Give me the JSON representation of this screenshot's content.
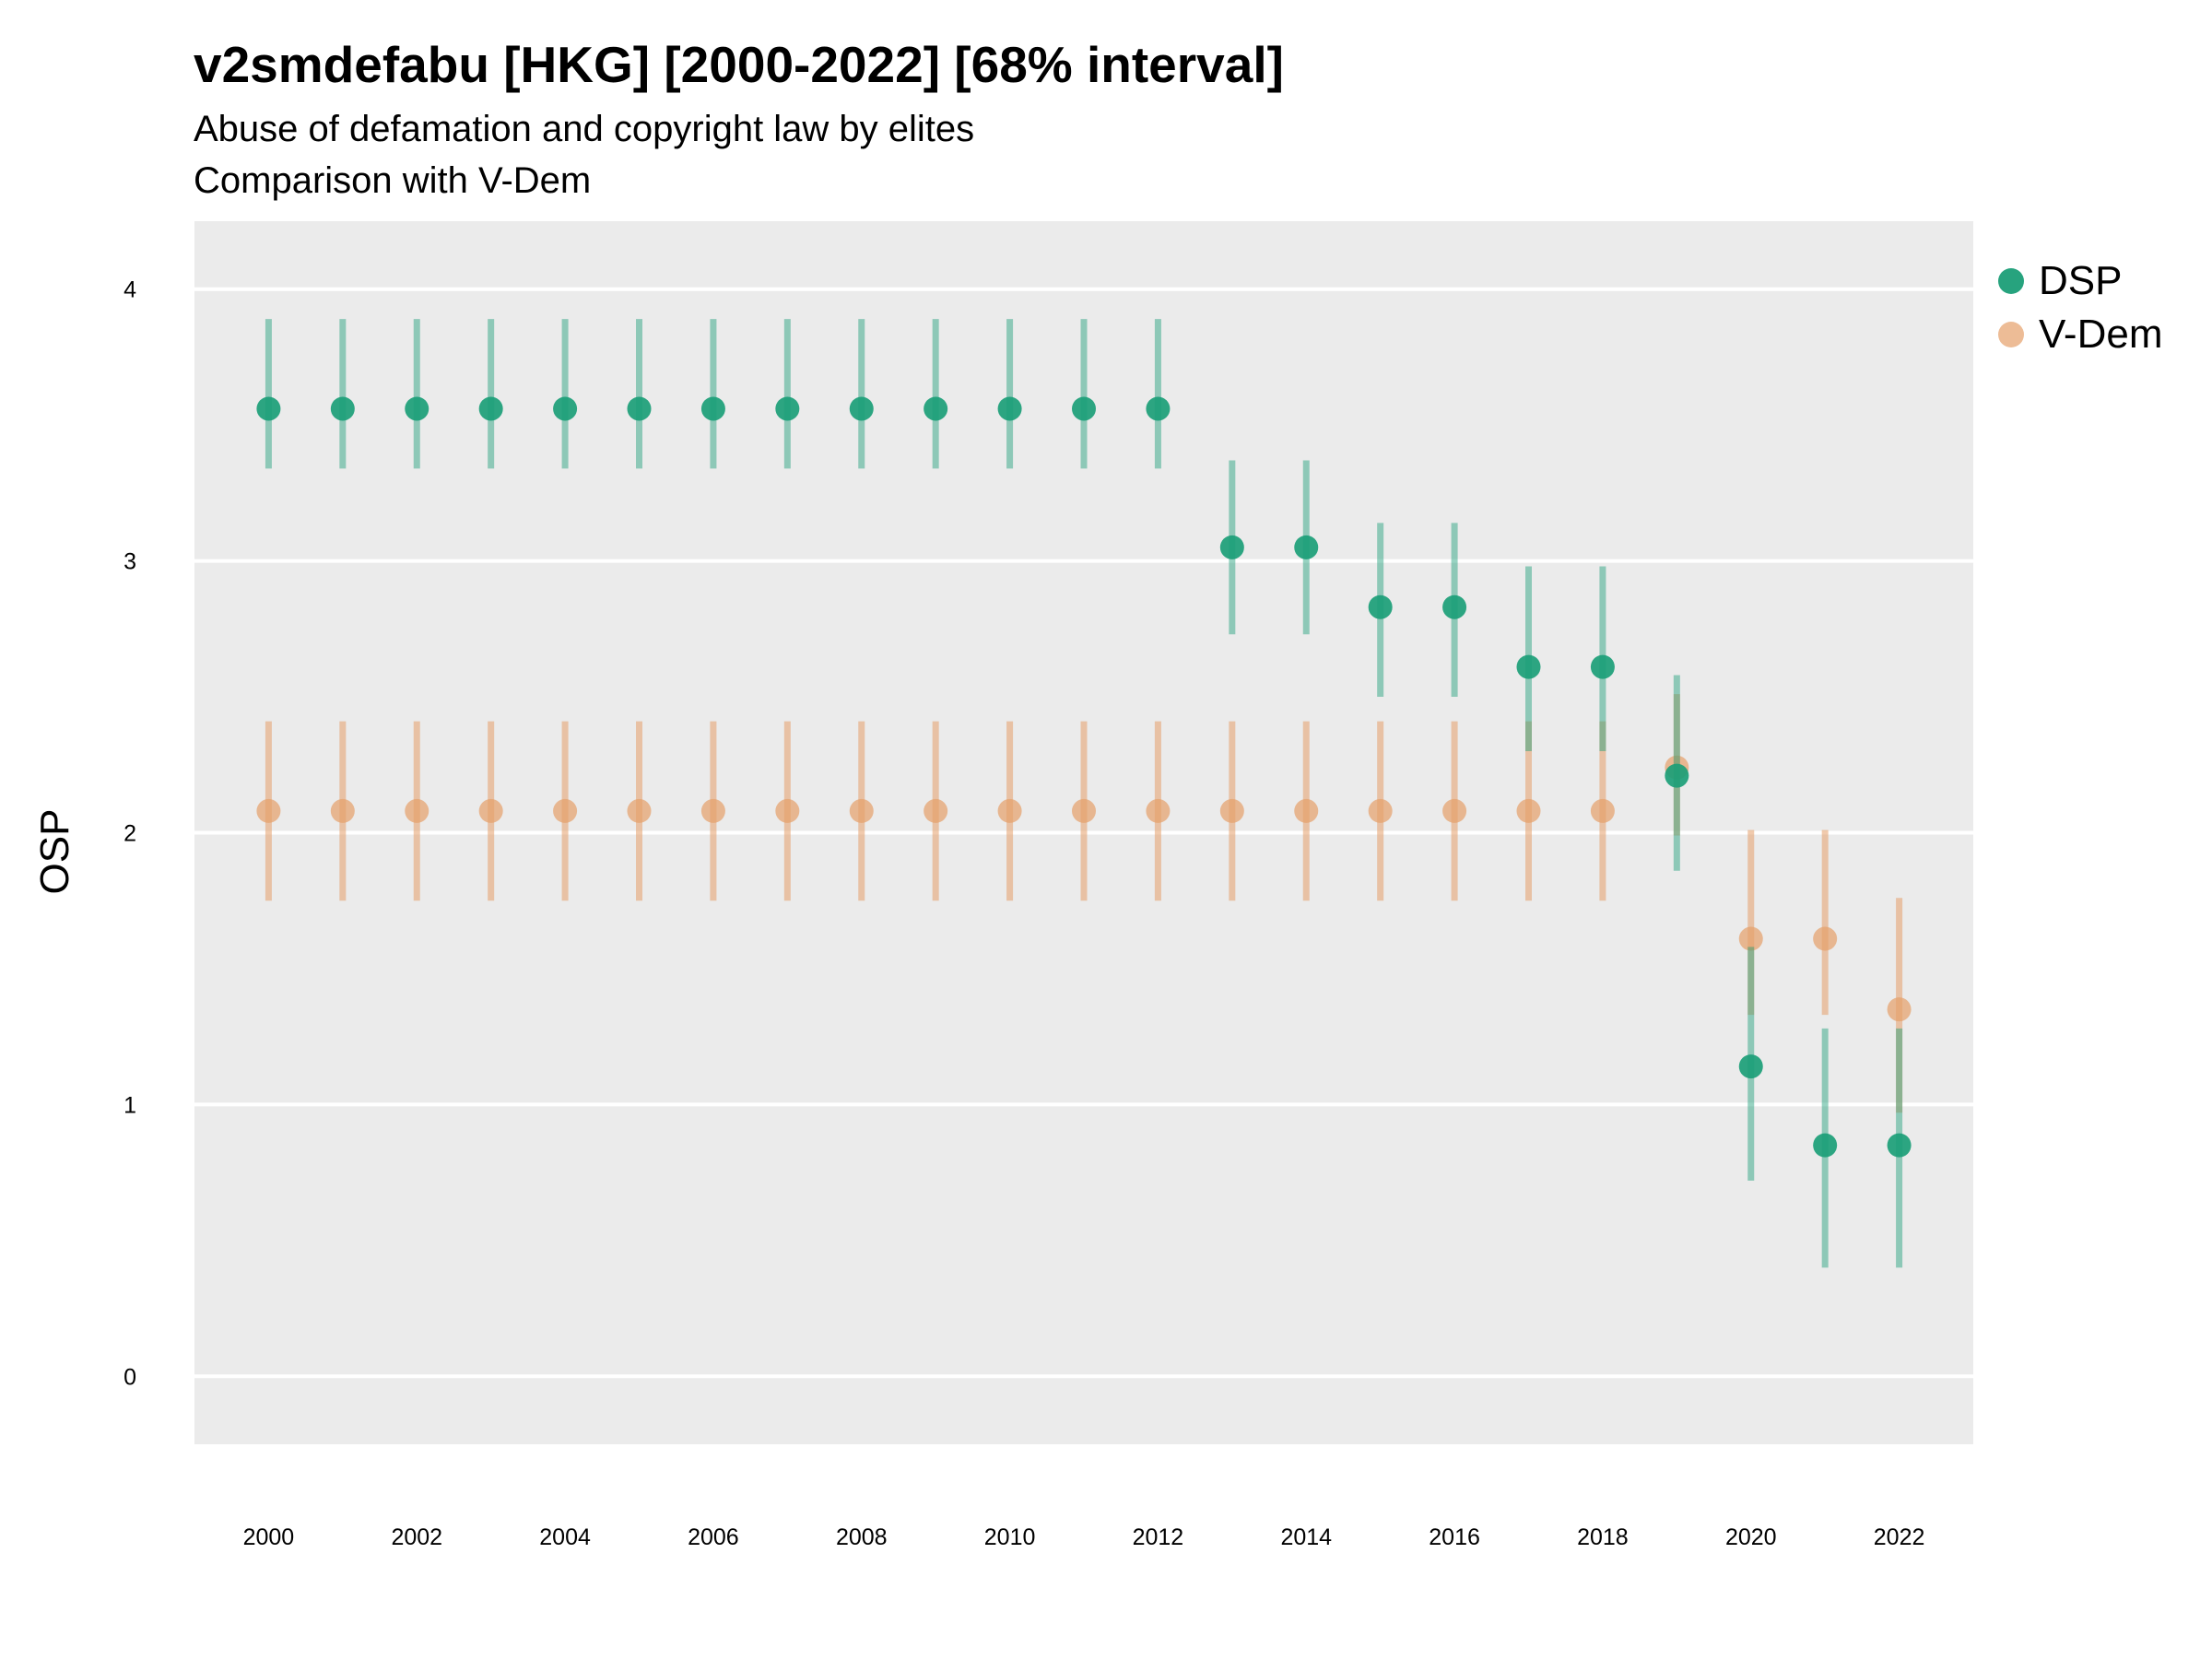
{
  "title": "v2smdefabu [HKG] [2000-2022] [68% interval]",
  "subtitle_lines": [
    "Abuse of defamation and copyright law by elites",
    "Comparison with V-Dem"
  ],
  "colors": {
    "DSP": "#1b9e77",
    "V-Dem": "#e69f6a",
    "panel": "#ebebeb",
    "grid": "#ffffff"
  },
  "legend": [
    "DSP",
    "V-Dem"
  ],
  "chart_data": {
    "type": "scatter",
    "title": "v2smdefabu [HKG] [2000-2022] [68% interval]",
    "subtitle": "Abuse of defamation and copyright law by elites\nComparison with V-Dem",
    "xlabel": "",
    "ylabel": "OSP",
    "x_ticks": [
      "2000",
      "2002",
      "2004",
      "2006",
      "2008",
      "2010",
      "2012",
      "2014",
      "2016",
      "2018",
      "2020",
      "2022"
    ],
    "y_ticks": [
      "0",
      "1",
      "2",
      "3",
      "4"
    ],
    "xlim": [
      1999.0,
      2023.0
    ],
    "ylim": [
      -0.25,
      4.25
    ],
    "grid": true,
    "legend_position": "right",
    "series": [
      {
        "name": "DSP",
        "x": [
          2000,
          2001,
          2002,
          2003,
          2004,
          2005,
          2006,
          2007,
          2008,
          2009,
          2010,
          2011,
          2012,
          2013,
          2014,
          2015,
          2016,
          2017,
          2018,
          2019,
          2020,
          2021,
          2022
        ],
        "y": [
          3.56,
          3.56,
          3.56,
          3.56,
          3.56,
          3.56,
          3.56,
          3.56,
          3.56,
          3.56,
          3.56,
          3.56,
          3.56,
          3.05,
          3.05,
          2.83,
          2.83,
          2.61,
          2.61,
          2.21,
          1.14,
          0.85,
          0.85
        ],
        "lower": [
          3.34,
          3.34,
          3.34,
          3.34,
          3.34,
          3.34,
          3.34,
          3.34,
          3.34,
          3.34,
          3.34,
          3.34,
          3.34,
          2.73,
          2.73,
          2.5,
          2.5,
          2.3,
          2.3,
          1.86,
          0.72,
          0.4,
          0.4
        ],
        "upper": [
          3.89,
          3.89,
          3.89,
          3.89,
          3.89,
          3.89,
          3.89,
          3.89,
          3.89,
          3.89,
          3.89,
          3.89,
          3.89,
          3.37,
          3.37,
          3.14,
          3.14,
          2.98,
          2.98,
          2.58,
          1.58,
          1.28,
          1.28
        ]
      },
      {
        "name": "V-Dem",
        "x": [
          2000,
          2001,
          2002,
          2003,
          2004,
          2005,
          2006,
          2007,
          2008,
          2009,
          2010,
          2011,
          2012,
          2013,
          2014,
          2015,
          2016,
          2017,
          2018,
          2019,
          2020,
          2021,
          2022
        ],
        "y": [
          2.08,
          2.08,
          2.08,
          2.08,
          2.08,
          2.08,
          2.08,
          2.08,
          2.08,
          2.08,
          2.08,
          2.08,
          2.08,
          2.08,
          2.08,
          2.08,
          2.08,
          2.08,
          2.08,
          2.24,
          1.61,
          1.61,
          1.35
        ],
        "lower": [
          1.75,
          1.75,
          1.75,
          1.75,
          1.75,
          1.75,
          1.75,
          1.75,
          1.75,
          1.75,
          1.75,
          1.75,
          1.75,
          1.75,
          1.75,
          1.75,
          1.75,
          1.75,
          1.75,
          1.99,
          1.33,
          1.33,
          0.97
        ],
        "upper": [
          2.41,
          2.41,
          2.41,
          2.41,
          2.41,
          2.41,
          2.41,
          2.41,
          2.41,
          2.41,
          2.41,
          2.41,
          2.41,
          2.41,
          2.41,
          2.41,
          2.41,
          2.41,
          2.41,
          2.51,
          2.01,
          2.01,
          1.76
        ]
      }
    ]
  }
}
